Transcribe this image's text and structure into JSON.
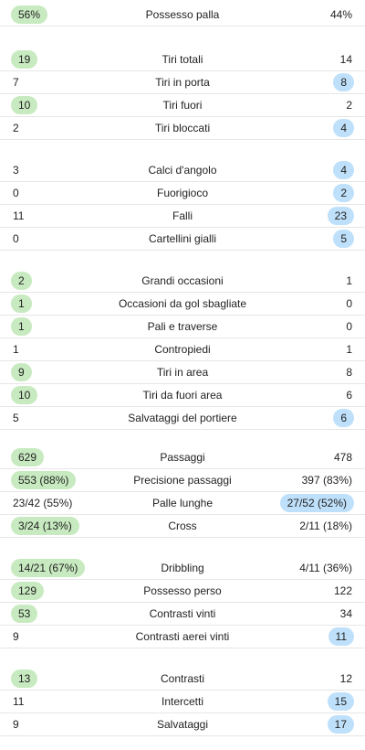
{
  "groups": [
    {
      "name": "possesso",
      "rows": [
        {
          "label": "Possesso palla",
          "home": "56%",
          "away": "44%",
          "win": "home"
        }
      ]
    },
    {
      "name": "tiri",
      "rows": [
        {
          "label": "Tiri totali",
          "home": "19",
          "away": "14",
          "win": "home"
        },
        {
          "label": "Tiri in porta",
          "home": "7",
          "away": "8",
          "win": "away"
        },
        {
          "label": "Tiri fuori",
          "home": "10",
          "away": "2",
          "win": "home"
        },
        {
          "label": "Tiri bloccati",
          "home": "2",
          "away": "4",
          "win": "away"
        }
      ]
    },
    {
      "name": "generale",
      "rows": [
        {
          "label": "Calci d'angolo",
          "home": "3",
          "away": "4",
          "win": "away"
        },
        {
          "label": "Fuorigioco",
          "home": "0",
          "away": "2",
          "win": "away"
        },
        {
          "label": "Falli",
          "home": "11",
          "away": "23",
          "win": "away"
        },
        {
          "label": "Cartellini gialli",
          "home": "0",
          "away": "5",
          "win": "away"
        }
      ]
    },
    {
      "name": "attacco",
      "rows": [
        {
          "label": "Grandi occasioni",
          "home": "2",
          "away": "1",
          "win": "home"
        },
        {
          "label": "Occasioni da gol sbagliate",
          "home": "1",
          "away": "0",
          "win": "home"
        },
        {
          "label": "Pali e traverse",
          "home": "1",
          "away": "0",
          "win": "home"
        },
        {
          "label": "Contropiedi",
          "home": "1",
          "away": "1",
          "win": "none"
        },
        {
          "label": "Tiri in area",
          "home": "9",
          "away": "8",
          "win": "home"
        },
        {
          "label": "Tiri da fuori area",
          "home": "10",
          "away": "6",
          "win": "home"
        },
        {
          "label": "Salvataggi del portiere",
          "home": "5",
          "away": "6",
          "win": "away"
        }
      ]
    },
    {
      "name": "passaggi",
      "rows": [
        {
          "label": "Passaggi",
          "home": "629",
          "away": "478",
          "win": "home"
        },
        {
          "label": "Precisione passaggi",
          "home": "553 (88%)",
          "away": "397 (83%)",
          "win": "home"
        },
        {
          "label": "Palle lunghe",
          "home": "23/42 (55%)",
          "away": "27/52 (52%)",
          "win": "away"
        },
        {
          "label": "Cross",
          "home": "3/24 (13%)",
          "away": "2/11 (18%)",
          "win": "home"
        }
      ]
    },
    {
      "name": "duelli",
      "rows": [
        {
          "label": "Dribbling",
          "home": "14/21 (67%)",
          "away": "4/11 (36%)",
          "win": "home"
        },
        {
          "label": "Possesso perso",
          "home": "129",
          "away": "122",
          "win": "home"
        },
        {
          "label": "Contrasti vinti",
          "home": "53",
          "away": "34",
          "win": "home"
        },
        {
          "label": "Contrasti aerei vinti",
          "home": "9",
          "away": "11",
          "win": "away"
        }
      ]
    },
    {
      "name": "difesa",
      "rows": [
        {
          "label": "Contrasti",
          "home": "13",
          "away": "12",
          "win": "home"
        },
        {
          "label": "Intercetti",
          "home": "11",
          "away": "15",
          "win": "away"
        },
        {
          "label": "Salvataggi",
          "home": "9",
          "away": "17",
          "win": "away"
        }
      ]
    }
  ],
  "colors": {
    "home_highlight": "#c8eac0",
    "away_highlight": "#bfe0fa",
    "divider": "#e6e6e6",
    "text": "#222222"
  }
}
